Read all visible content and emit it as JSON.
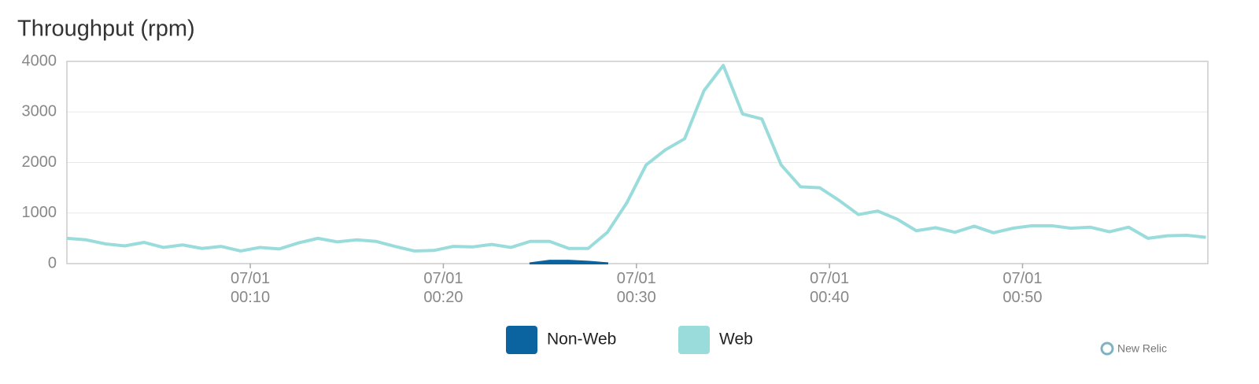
{
  "chart_data": {
    "type": "line",
    "title": "Throughput (rpm)",
    "branding": "New Relic",
    "x": [
      0.5,
      1.5,
      2.5,
      3.5,
      4.5,
      5.5,
      6.5,
      7.5,
      8.5,
      9.5,
      10.5,
      11.5,
      12.5,
      13.5,
      14.5,
      15.5,
      16.5,
      17.5,
      18.5,
      19.5,
      20.5,
      21.5,
      22.5,
      23.5,
      24.5,
      25.5,
      26.5,
      27.5,
      28.5,
      29.5,
      30.5,
      31.5,
      32.5,
      33.5,
      34.5,
      35.5,
      36.5,
      37.5,
      38.5,
      39.5,
      40.5,
      41.5,
      42.5,
      43.5,
      44.5,
      45.5,
      46.5,
      47.5,
      48.5,
      49.5,
      50.5,
      51.5,
      52.5,
      53.5,
      54.5,
      55.5,
      56.5,
      57.5,
      58.5,
      59.5
    ],
    "series": [
      {
        "name": "Non-Web",
        "color": "#0b64a0",
        "style": "area",
        "values": [
          null,
          null,
          null,
          null,
          null,
          null,
          null,
          null,
          null,
          null,
          null,
          null,
          null,
          null,
          null,
          null,
          null,
          null,
          null,
          null,
          null,
          null,
          null,
          null,
          10,
          60,
          60,
          40,
          10,
          null,
          null,
          null,
          null,
          null,
          null,
          null,
          null,
          null,
          null,
          null,
          null,
          null,
          null,
          null,
          null,
          null,
          null,
          null,
          null,
          null,
          null,
          null,
          null,
          null,
          null,
          null,
          null,
          null,
          null,
          null
        ]
      },
      {
        "name": "Web",
        "color": "#99dcdb",
        "style": "line",
        "values": [
          500,
          470,
          390,
          350,
          420,
          320,
          370,
          300,
          340,
          250,
          320,
          290,
          410,
          500,
          430,
          470,
          440,
          340,
          250,
          260,
          340,
          330,
          380,
          320,
          440,
          440,
          300,
          300,
          620,
          1200,
          1950,
          2250,
          2470,
          3420,
          3920,
          2960,
          2860,
          1950,
          1520,
          1500,
          1250,
          970,
          1040,
          880,
          650,
          710,
          620,
          740,
          610,
          700,
          750,
          750,
          700,
          720,
          630,
          720,
          500,
          550,
          560,
          520
        ]
      }
    ],
    "xlim": [
      0.5,
      59.6
    ],
    "xticks": [
      {
        "value": 10,
        "label": "07/01 00:10"
      },
      {
        "value": 20,
        "label": "07/01 00:20"
      },
      {
        "value": 30,
        "label": "07/01 00:30"
      },
      {
        "value": 40,
        "label": "07/01 00:40"
      },
      {
        "value": 50,
        "label": "07/01 00:50"
      }
    ],
    "ylim": [
      0,
      4000
    ],
    "yticks": [
      0,
      1000,
      2000,
      3000,
      4000
    ],
    "grid": true,
    "legend": "bottom"
  }
}
